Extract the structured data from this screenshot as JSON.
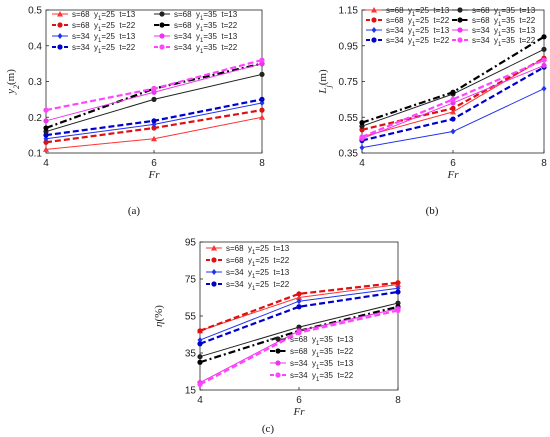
{
  "chart_data": [
    {
      "type": "line",
      "panel_label": "(a)",
      "xlabel": "Fr",
      "ylabel_base": "y",
      "ylabel_sub": "2",
      "ylabel_unit": "(m)",
      "x": [
        4,
        6,
        8
      ],
      "xticks": [
        "4",
        "6",
        "8"
      ],
      "ylim": [
        0.1,
        0.5
      ],
      "yticks": [
        "0.1",
        "0.2",
        "0.3",
        "0.4",
        "0.5"
      ],
      "legend_placement": "top",
      "series": [
        {
          "name": "s=68  y1=25  t=13",
          "values": [
            0.11,
            0.14,
            0.2
          ],
          "color": "#ff3333",
          "marker": "triangle",
          "dash": "solid",
          "width": 1
        },
        {
          "name": "s=68  y1=25  t=22",
          "values": [
            0.13,
            0.17,
            0.22
          ],
          "color": "#dd1111",
          "marker": "dot",
          "dash": "dashed",
          "width": 2.2
        },
        {
          "name": "s=34  y1=25  t=13",
          "values": [
            0.14,
            0.18,
            0.24
          ],
          "color": "#2233ee",
          "marker": "diamond",
          "dash": "solid",
          "width": 1
        },
        {
          "name": "s=34  y1=25  t=22",
          "values": [
            0.15,
            0.19,
            0.25
          ],
          "color": "#0000cc",
          "marker": "dot",
          "dash": "dashed",
          "width": 2.2
        },
        {
          "name": "s=68  y1=35  t=13",
          "values": [
            0.16,
            0.25,
            0.32
          ],
          "color": "#222222",
          "marker": "dot",
          "dash": "solid",
          "width": 1
        },
        {
          "name": "s=68  y1=35  t=22",
          "values": [
            0.17,
            0.28,
            0.35
          ],
          "color": "#000000",
          "marker": "dot",
          "dash": "dashdot",
          "width": 2.2
        },
        {
          "name": "s=34  y1=35  t=13",
          "values": [
            0.19,
            0.27,
            0.35
          ],
          "color": "#ee33ee",
          "marker": "dot",
          "dash": "solid",
          "width": 1
        },
        {
          "name": "s=34  y1=35  t=22",
          "values": [
            0.22,
            0.28,
            0.36
          ],
          "color": "#ff44ff",
          "marker": "dot",
          "dash": "dashed",
          "width": 2.2
        }
      ]
    },
    {
      "type": "line",
      "panel_label": "(b)",
      "xlabel": "Fr",
      "ylabel_base": "L",
      "ylabel_sub": "j",
      "ylabel_unit": "(m)",
      "x": [
        4,
        6,
        8
      ],
      "xticks": [
        "4",
        "6",
        "8"
      ],
      "ylim": [
        0.35,
        1.15
      ],
      "yticks": [
        "0.35",
        "0.55",
        "0.75",
        "0.95",
        "1.15"
      ],
      "legend_placement": "top",
      "series": [
        {
          "name": "s=68  y1=25  t=13",
          "values": [
            0.44,
            0.58,
            0.88
          ],
          "color": "#ff3333",
          "marker": "triangle",
          "dash": "solid",
          "width": 1
        },
        {
          "name": "s=68  y1=25  t=22",
          "values": [
            0.48,
            0.6,
            0.88
          ],
          "color": "#dd1111",
          "marker": "dot",
          "dash": "dashed",
          "width": 2.2
        },
        {
          "name": "s=34  y1=25  t=13",
          "values": [
            0.38,
            0.47,
            0.71
          ],
          "color": "#2233ee",
          "marker": "diamond",
          "dash": "solid",
          "width": 1
        },
        {
          "name": "s=34  y1=25  t=22",
          "values": [
            0.42,
            0.54,
            0.83
          ],
          "color": "#0000cc",
          "marker": "dot",
          "dash": "dashed",
          "width": 2.2
        },
        {
          "name": "s=68  y1=35  t=13",
          "values": [
            0.5,
            0.68,
            0.93
          ],
          "color": "#222222",
          "marker": "dot",
          "dash": "solid",
          "width": 1
        },
        {
          "name": "s=68  y1=35  t=22",
          "values": [
            0.52,
            0.69,
            1.0
          ],
          "color": "#000000",
          "marker": "dot",
          "dash": "dashdot",
          "width": 2.2
        },
        {
          "name": "s=34  y1=35  t=13",
          "values": [
            0.43,
            0.63,
            0.84
          ],
          "color": "#ee33ee",
          "marker": "dot",
          "dash": "solid",
          "width": 1
        },
        {
          "name": "s=34  y1=35  t=22",
          "values": [
            0.44,
            0.65,
            0.87
          ],
          "color": "#ff44ff",
          "marker": "dot",
          "dash": "dashed",
          "width": 2.2
        }
      ]
    },
    {
      "type": "line",
      "panel_label": "(c)",
      "xlabel": "Fr",
      "ylabel_base": "η",
      "ylabel_sub": "",
      "ylabel_unit": "(%)",
      "x": [
        4,
        6,
        8
      ],
      "xticks": [
        "4",
        "6",
        "8"
      ],
      "ylim": [
        15,
        95
      ],
      "yticks": [
        "15",
        "35",
        "55",
        "75",
        "95"
      ],
      "legend_placement": "top-left and bottom-right",
      "series": [
        {
          "name": "s=68  y1=25  t=13",
          "values": [
            47,
            65,
            72
          ],
          "color": "#ff3333",
          "marker": "triangle",
          "dash": "solid",
          "width": 1
        },
        {
          "name": "s=68  y1=25  t=22",
          "values": [
            47,
            67,
            73
          ],
          "color": "#dd1111",
          "marker": "dot",
          "dash": "dashed",
          "width": 2.2
        },
        {
          "name": "s=34  y1=25  t=13",
          "values": [
            42,
            63,
            70
          ],
          "color": "#2233ee",
          "marker": "diamond",
          "dash": "solid",
          "width": 1
        },
        {
          "name": "s=34  y1=25  t=22",
          "values": [
            40,
            60,
            68
          ],
          "color": "#0000cc",
          "marker": "dot",
          "dash": "dashed",
          "width": 2.2
        },
        {
          "name": "s=68  y1=35  t=13",
          "values": [
            33,
            49,
            62
          ],
          "color": "#222222",
          "marker": "dot",
          "dash": "solid",
          "width": 1
        },
        {
          "name": "s=68  y1=35  t=22",
          "values": [
            30,
            47,
            60
          ],
          "color": "#000000",
          "marker": "dot",
          "dash": "dashdot",
          "width": 2.2
        },
        {
          "name": "s=34  y1=35  t=13",
          "values": [
            19,
            47,
            59
          ],
          "color": "#ee33ee",
          "marker": "dot",
          "dash": "solid",
          "width": 1
        },
        {
          "name": "s=34  y1=35  t=22",
          "values": [
            18,
            46,
            58
          ],
          "color": "#ff44ff",
          "marker": "dot",
          "dash": "dashed",
          "width": 2.2
        }
      ]
    }
  ]
}
